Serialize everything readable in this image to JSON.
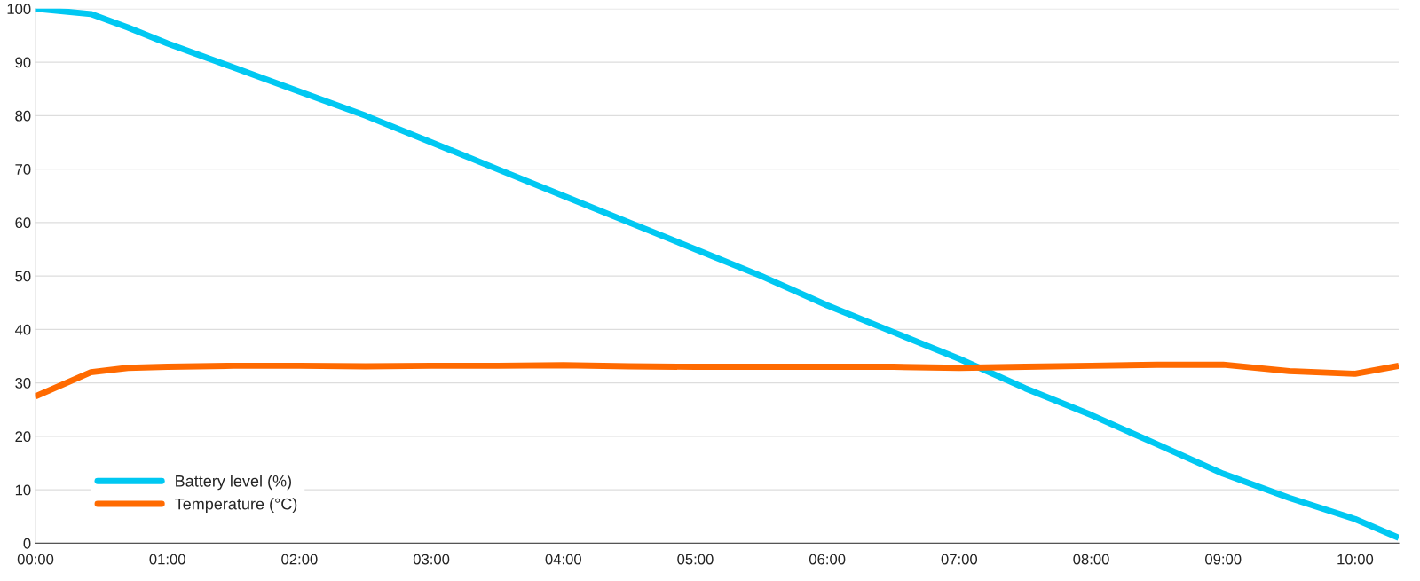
{
  "chart_data": {
    "type": "line",
    "x": [
      0,
      0.42,
      0.7,
      1,
      1.5,
      2,
      2.5,
      3,
      3.5,
      4,
      4.5,
      5,
      5.5,
      6,
      6.5,
      7,
      7.5,
      8,
      8.5,
      9,
      9.5,
      10,
      10.33
    ],
    "series": [
      {
        "name": "Battery level (%)",
        "color": "#00c8f2",
        "values": [
          100,
          99,
          96.5,
          93.5,
          89,
          84.5,
          80,
          75,
          70,
          65,
          60,
          55,
          50,
          44.5,
          39.5,
          34.5,
          29,
          24,
          18.5,
          13,
          8.5,
          4.5,
          1
        ]
      },
      {
        "name": "Temperature (°C)",
        "color": "#ff6a00",
        "values": [
          27.5,
          32,
          32.8,
          33,
          33.2,
          33.2,
          33.1,
          33.2,
          33.2,
          33.3,
          33.1,
          33,
          33,
          33,
          33,
          32.8,
          33,
          33.2,
          33.4,
          33.4,
          32.2,
          31.7,
          33.2
        ]
      }
    ],
    "xlim": [
      0,
      10.33
    ],
    "xticks": [
      {
        "value": 0,
        "label": "00:00"
      },
      {
        "value": 1,
        "label": "01:00"
      },
      {
        "value": 2,
        "label": "02:00"
      },
      {
        "value": 3,
        "label": "03:00"
      },
      {
        "value": 4,
        "label": "04:00"
      },
      {
        "value": 5,
        "label": "05:00"
      },
      {
        "value": 6,
        "label": "06:00"
      },
      {
        "value": 7,
        "label": "07:00"
      },
      {
        "value": 8,
        "label": "08:00"
      },
      {
        "value": 9,
        "label": "09:00"
      },
      {
        "value": 10,
        "label": "10:00"
      }
    ],
    "ylim": [
      0,
      100
    ],
    "yticks": [
      0,
      10,
      20,
      30,
      40,
      50,
      60,
      70,
      80,
      90,
      100
    ],
    "grid": "y",
    "legend": "bottom left",
    "marker": "none",
    "line_style": "solid"
  }
}
